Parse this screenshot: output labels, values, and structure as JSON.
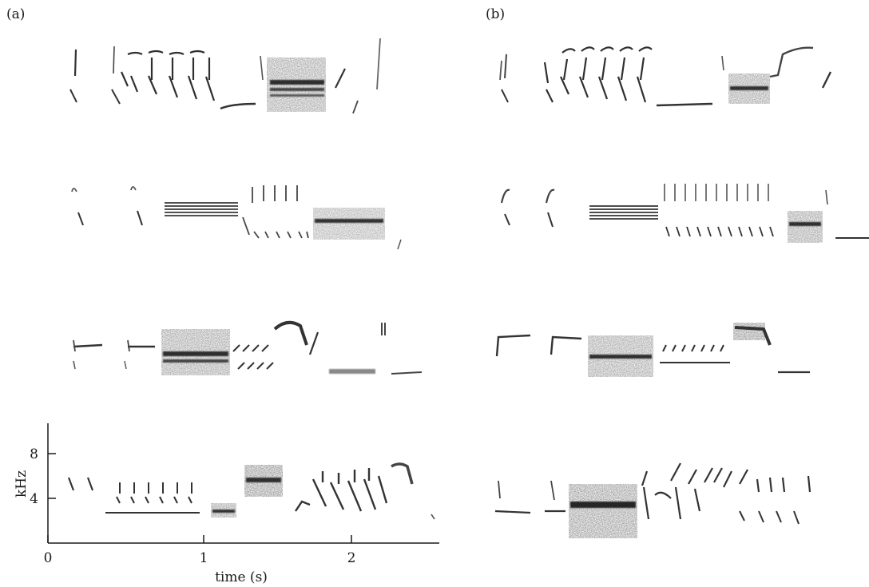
{
  "panel_labels": {
    "a": "(a)",
    "b": "(b)"
  },
  "axis": {
    "y_label": "kHz",
    "x_label": "time (s)",
    "y_ticks": [
      "8",
      "4"
    ],
    "x_ticks": [
      "0",
      "1",
      "2"
    ]
  },
  "colors": {
    "ink": "#2a2a2a",
    "wash": "#7a7a7a",
    "axis": "#1a1a1a"
  }
}
